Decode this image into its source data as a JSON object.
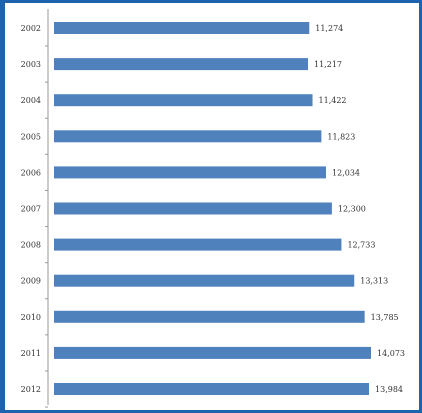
{
  "chart_data": {
    "type": "bar",
    "orientation": "horizontal",
    "title": "",
    "xlabel": "",
    "ylabel": "",
    "categories": [
      "2002",
      "2003",
      "2004",
      "2005",
      "2006",
      "2007",
      "2008",
      "2009",
      "2010",
      "2011",
      "2012"
    ],
    "values": [
      11274,
      11217,
      11422,
      11823,
      12034,
      12300,
      12733,
      13313,
      13785,
      14073,
      13984
    ],
    "value_labels": [
      "11,274",
      "11,217",
      "11,422",
      "11,823",
      "12,034",
      "12,300",
      "12,733",
      "13,313",
      "13,785",
      "14,073",
      "13,984"
    ],
    "bar_color": "#4f81bd",
    "grid": false,
    "legend": "none"
  }
}
